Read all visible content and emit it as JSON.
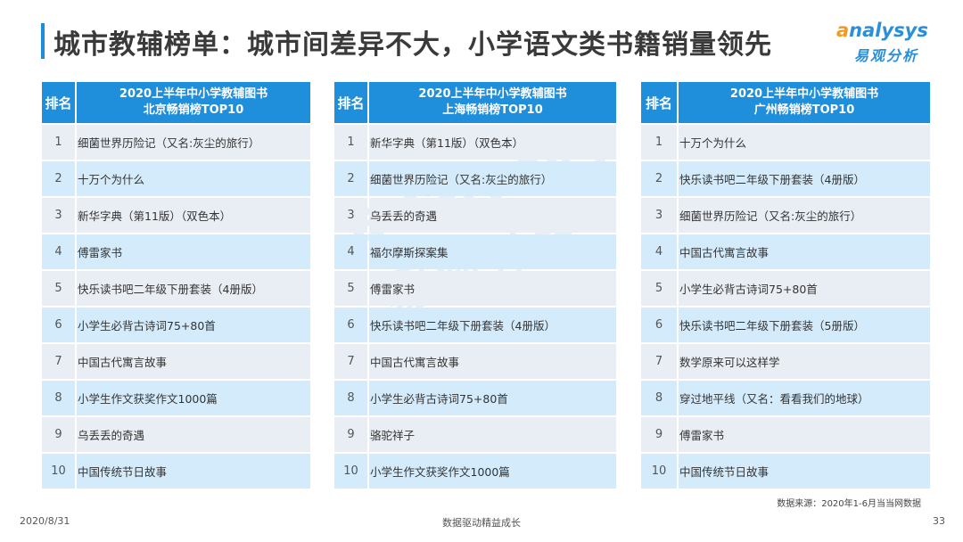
{
  "title": "城市教辅榜单：城市间差异不大，小学语文类书籍销量领先",
  "logo": {
    "mark": "a",
    "text": "nalysys",
    "cn": "易观分析"
  },
  "rank_header": "排名",
  "tables": [
    {
      "title_line1": "2020上半年中小学教辅图书",
      "title_line2": "北京畅销榜TOP10",
      "rows": [
        {
          "rank": "1",
          "name": "细菌世界历险记（又名:灰尘的旅行）"
        },
        {
          "rank": "2",
          "name": "十万个为什么"
        },
        {
          "rank": "3",
          "name": "新华字典（第11版）（双色本）"
        },
        {
          "rank": "4",
          "name": "傅雷家书"
        },
        {
          "rank": "5",
          "name": "快乐读书吧二年级下册套装（4册版）"
        },
        {
          "rank": "6",
          "name": "小学生必背古诗词75+80首"
        },
        {
          "rank": "7",
          "name": "中国古代寓言故事"
        },
        {
          "rank": "8",
          "name": "小学生作文获奖作文1000篇"
        },
        {
          "rank": "9",
          "name": "乌丢丢的奇遇"
        },
        {
          "rank": "10",
          "name": "中国传统节日故事"
        }
      ]
    },
    {
      "title_line1": "2020上半年中小学教辅图书",
      "title_line2": "上海畅销榜TOP10",
      "rows": [
        {
          "rank": "1",
          "name": "新华字典（第11版）（双色本）"
        },
        {
          "rank": "2",
          "name": "细菌世界历险记（又名:灰尘的旅行）"
        },
        {
          "rank": "3",
          "name": "乌丢丢的奇遇"
        },
        {
          "rank": "4",
          "name": "福尔摩斯探案集"
        },
        {
          "rank": "5",
          "name": "傅雷家书"
        },
        {
          "rank": "6",
          "name": "快乐读书吧二年级下册套装（4册版）"
        },
        {
          "rank": "7",
          "name": "中国古代寓言故事"
        },
        {
          "rank": "8",
          "name": "小学生必背古诗词75+80首"
        },
        {
          "rank": "9",
          "name": "骆驼祥子"
        },
        {
          "rank": "10",
          "name": "小学生作文获奖作文1000篇"
        }
      ]
    },
    {
      "title_line1": "2020上半年中小学教辅图书",
      "title_line2": "广州畅销榜TOP10",
      "rows": [
        {
          "rank": "1",
          "name": "十万个为什么"
        },
        {
          "rank": "2",
          "name": "快乐读书吧二年级下册套装（4册版）"
        },
        {
          "rank": "3",
          "name": "细菌世界历险记（又名:灰尘的旅行）"
        },
        {
          "rank": "4",
          "name": "中国古代寓言故事"
        },
        {
          "rank": "5",
          "name": "小学生必背古诗词75+80首"
        },
        {
          "rank": "6",
          "name": "快乐读书吧二年级下册套装（5册版）"
        },
        {
          "rank": "7",
          "name": "数学原来可以这样学"
        },
        {
          "rank": "8",
          "name": "穿过地平线（又名：看看我们的地球）"
        },
        {
          "rank": "9",
          "name": "傅雷家书"
        },
        {
          "rank": "10",
          "name": "中国传统节日故事"
        }
      ]
    }
  ],
  "source_note": "数据来源：2020年1-6月当当网数据",
  "footer": {
    "date": "2020/8/31",
    "center": "数据驱动精益成长",
    "page": "33"
  },
  "colors": {
    "accent": "#1f8fdb",
    "row_light": "#e9eef5",
    "row_blue": "#d4ebfb",
    "logo_orange": "#f39a1e"
  }
}
